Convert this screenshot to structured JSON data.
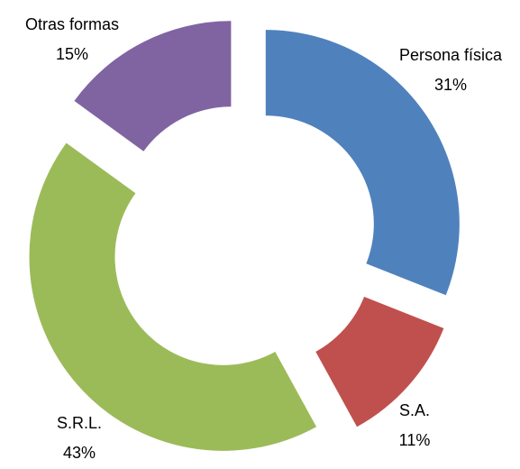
{
  "chart_data": {
    "type": "donut",
    "categories": [
      "Persona física",
      "S.A.",
      "S.R.L.",
      "Otras formas"
    ],
    "values": [
      31,
      11,
      43,
      15
    ],
    "value_labels": [
      "31%",
      "11%",
      "43%",
      "15%"
    ],
    "colors": [
      "#4f81bd",
      "#c0504d",
      "#9bbb59",
      "#8064a2"
    ]
  }
}
